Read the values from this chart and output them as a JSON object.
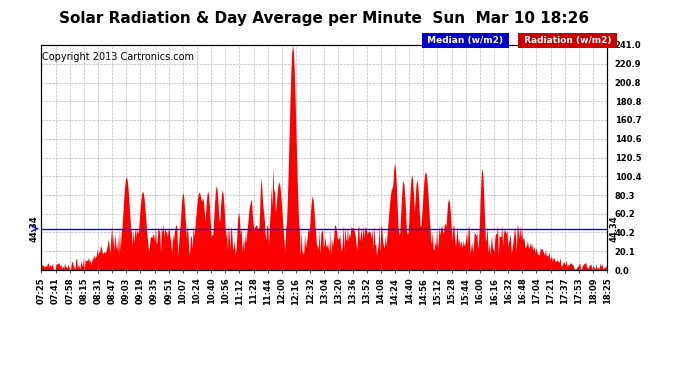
{
  "title": "Solar Radiation & Day Average per Minute  Sun  Mar 10 18:26",
  "copyright": "Copyright 2013 Cartronics.com",
  "legend_median_label": "Median (w/m2)",
  "legend_radiation_label": "Radiation (w/m2)",
  "median_value": 44.34,
  "y_max": 241.0,
  "y_min": 0.0,
  "y_ticks": [
    0.0,
    20.1,
    40.2,
    60.2,
    80.3,
    100.4,
    120.5,
    140.6,
    160.7,
    180.8,
    200.8,
    220.9,
    241.0
  ],
  "x_tick_labels": [
    "07:25",
    "07:41",
    "07:58",
    "08:15",
    "08:31",
    "08:47",
    "09:03",
    "09:19",
    "09:35",
    "09:51",
    "10:07",
    "10:24",
    "10:40",
    "10:56",
    "11:12",
    "11:28",
    "11:44",
    "12:00",
    "12:16",
    "12:32",
    "13:04",
    "13:20",
    "13:36",
    "13:52",
    "14:08",
    "14:24",
    "14:40",
    "14:56",
    "15:12",
    "15:28",
    "15:44",
    "16:00",
    "16:16",
    "16:32",
    "16:48",
    "17:04",
    "17:21",
    "17:37",
    "17:53",
    "18:09",
    "18:25"
  ],
  "background_color": "#ffffff",
  "plot_bg_color": "#ffffff",
  "grid_color": "#bbbbbb",
  "bar_color": "#ff0000",
  "median_line_color": "#0000ff",
  "title_fontsize": 11,
  "copyright_fontsize": 7,
  "tick_fontsize": 6,
  "legend_median_bg": "#0000cc",
  "legend_radiation_bg": "#cc0000"
}
